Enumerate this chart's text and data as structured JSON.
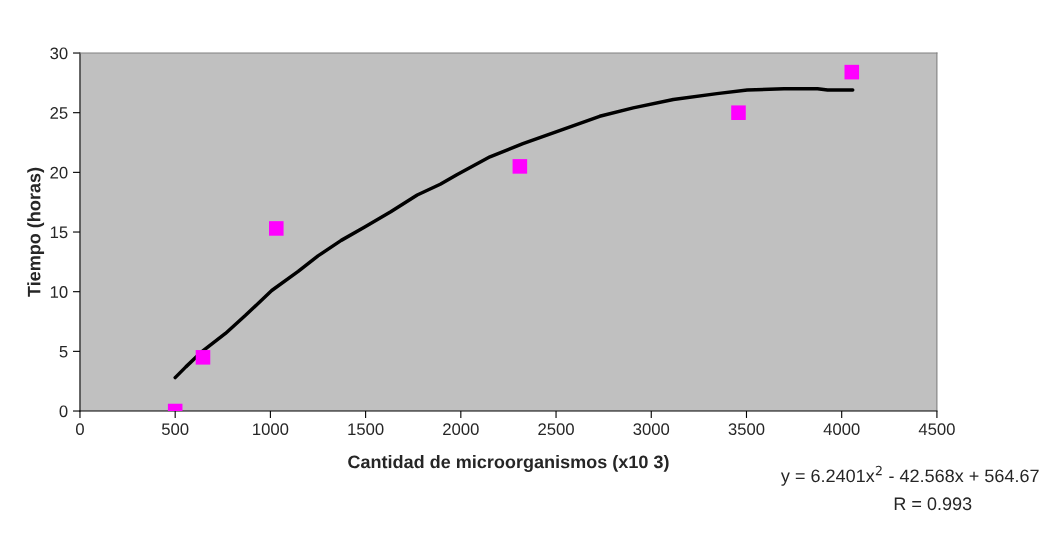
{
  "chart_data": {
    "type": "scatter",
    "xlabel": "Cantidad de microorganismos (x10 3)",
    "ylabel": "Tiempo (horas)",
    "annotations": [
      "y = 6.2401x$^{2}$ - 42.568x + 564.67",
      "R = 0.993"
    ],
    "series": [
      {
        "color": "#ff00ff",
        "marker": "square",
        "x": [
          500,
          646,
          1031,
          2310,
          3458,
          4053
        ],
        "values": [
          0,
          4.5,
          15.3,
          20.5,
          25,
          28.4
        ]
      },
      {
        "type": "line",
        "color": "#000000",
        "marker": "none",
        "line_style": "solid",
        "x": [
          500,
          556,
          642,
          764,
          868,
          1007,
          1146,
          1250,
          1372,
          1493,
          1632,
          1771,
          1892,
          1979,
          2153,
          2326,
          2500,
          2729,
          2905,
          3116,
          3345,
          3504,
          3697,
          3873,
          3926,
          4058
        ],
        "values": [
          2.8,
          3.7,
          5.0,
          6.5,
          8.0,
          10.1,
          11.7,
          13.0,
          14.3,
          15.4,
          16.7,
          18.1,
          19.0,
          19.8,
          21.3,
          22.4,
          23.4,
          24.7,
          25.4,
          26.1,
          26.6,
          26.9,
          27.0,
          27.0,
          26.9,
          26.9
        ]
      }
    ],
    "xlim": [
      0,
      4500
    ],
    "xticks": [
      0,
      500,
      1000,
      1500,
      2000,
      2500,
      3000,
      3500,
      4000,
      4500
    ],
    "ylim": [
      0,
      30
    ],
    "yticks": [
      0,
      5,
      10,
      15,
      20,
      25,
      30
    ],
    "grid": false,
    "legend": false
  }
}
